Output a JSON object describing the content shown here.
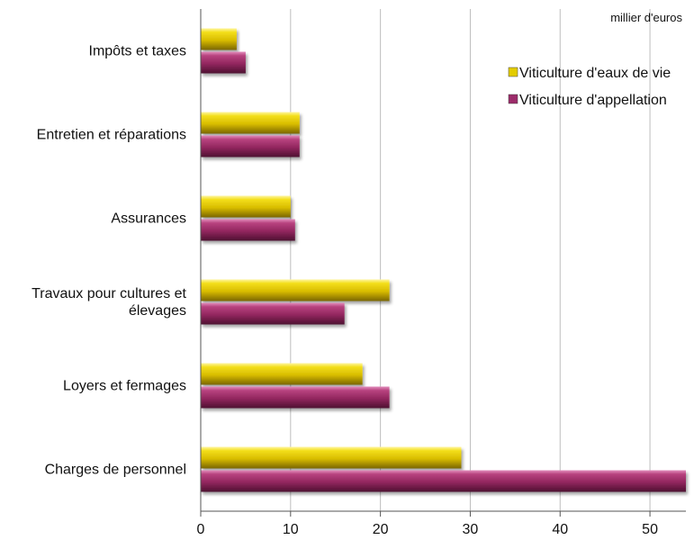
{
  "chart_data": {
    "type": "bar",
    "orientation": "horizontal",
    "unit_label": "millier d'euros",
    "categories": [
      [
        "Impôts et taxes"
      ],
      [
        "Entretien et réparations"
      ],
      [
        "Assurances"
      ],
      [
        "Travaux pour cultures et",
        "élevages"
      ],
      [
        "Loyers et fermages"
      ],
      [
        "Charges de personnel"
      ]
    ],
    "series": [
      {
        "name": "Viticulture d'eaux de vie",
        "color": "#e3cc00",
        "values": [
          4,
          11,
          10,
          21,
          18,
          29
        ]
      },
      {
        "name": "Viticulture d'appellation",
        "color": "#9c2c6a",
        "values": [
          5,
          11,
          10.5,
          16,
          21,
          54
        ]
      }
    ],
    "xlim": [
      0,
      54
    ],
    "xticks": [
      0,
      10,
      20,
      30,
      40,
      50
    ],
    "grid": true,
    "legend_position": "top-right"
  }
}
